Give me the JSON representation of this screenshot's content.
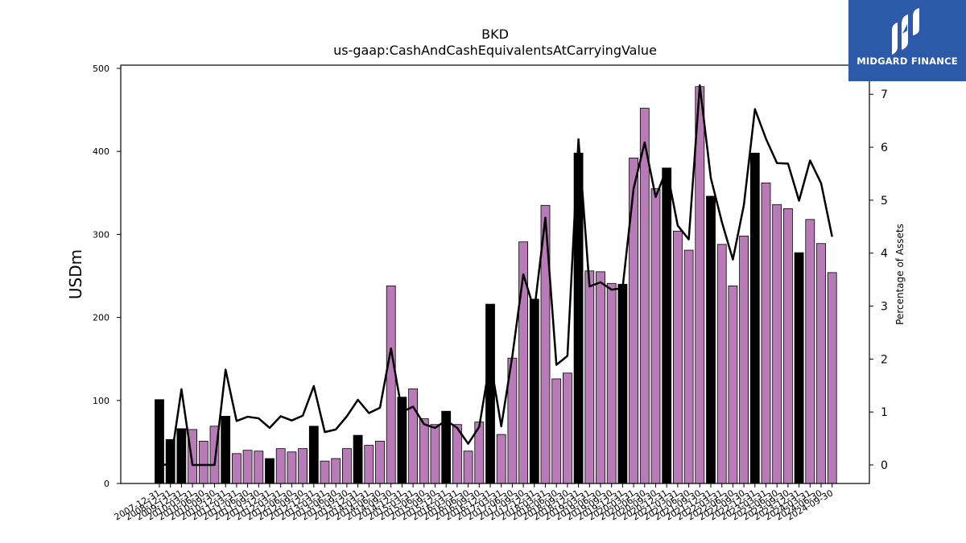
{
  "header": {
    "title": "BKD",
    "subtitle": "us-gaap:CashAndCashEquivalentsAtCarryingValue"
  },
  "logo": {
    "brand": "MIDGARD FINANCE",
    "icon": "midgard-logo-icon"
  },
  "colors": {
    "annual_bar": "#000000",
    "quarter_bar": "#b87bb8",
    "line": "#000000",
    "logo_bg": "#2c5aa8"
  },
  "chart_data": {
    "type": "bar",
    "title": "BKD",
    "subtitle": "us-gaap:CashAndCashEquivalentsAtCarryingValue",
    "ylabel": "USDm",
    "y2label": "Percentage of Assets",
    "ylim": [
      0,
      500
    ],
    "y2lim": [
      -0.35,
      7.55
    ],
    "yticks": [
      0,
      100,
      200,
      300,
      400,
      500
    ],
    "y2ticks": [
      0,
      1,
      2,
      3,
      4,
      5,
      6,
      7
    ],
    "grid": false,
    "categories": [
      "2007-12-31",
      "2008-12-31",
      "2009-12-31",
      "2010-03-31",
      "2010-06-30",
      "2010-09-30",
      "2010-12-31",
      "2011-03-31",
      "2011-06-30",
      "2011-09-30",
      "2011-12-31",
      "2012-03-31",
      "2012-06-30",
      "2012-09-30",
      "2012-12-31",
      "2013-03-31",
      "2013-06-30",
      "2013-09-30",
      "2013-12-31",
      "2014-03-31",
      "2014-06-30",
      "2014-09-30",
      "2014-12-31",
      "2015-03-31",
      "2015-06-30",
      "2015-09-30",
      "2015-12-31",
      "2016-03-31",
      "2016-06-30",
      "2016-09-30",
      "2016-12-31",
      "2017-03-31",
      "2017-06-30",
      "2017-09-30",
      "2017-12-31",
      "2018-03-31",
      "2018-06-30",
      "2018-09-30",
      "2018-12-31",
      "2019-03-31",
      "2019-06-30",
      "2019-09-30",
      "2019-12-31",
      "2020-03-31",
      "2020-06-30",
      "2020-09-30",
      "2020-12-31",
      "2021-03-31",
      "2021-06-30",
      "2021-09-30",
      "2021-12-31",
      "2022-03-31",
      "2022-06-30",
      "2022-09-30",
      "2022-12-31",
      "2023-03-31",
      "2023-06-30",
      "2023-09-30",
      "2023-12-31",
      "2024-03-31",
      "2024-06-30",
      "2024-09-30"
    ],
    "series": [
      {
        "kind": "bar",
        "annual_flags": [
          1,
          1,
          1,
          0,
          0,
          0,
          1,
          0,
          0,
          0,
          1,
          0,
          0,
          0,
          1,
          0,
          0,
          0,
          1,
          0,
          0,
          0,
          1,
          0,
          0,
          0,
          1,
          0,
          0,
          0,
          1,
          0,
          0,
          0,
          1,
          0,
          0,
          0,
          1,
          0,
          0,
          0,
          1,
          0,
          0,
          0,
          1,
          0,
          0,
          0,
          1,
          0,
          0,
          0,
          1,
          0,
          0,
          0,
          1,
          0,
          0,
          0
        ],
        "values": [
          101,
          53,
          66,
          65,
          51,
          69,
          81,
          36,
          40,
          39,
          30,
          42,
          38,
          42,
          69,
          27,
          30,
          42,
          58,
          46,
          51,
          238,
          104,
          114,
          78,
          71,
          87,
          71,
          39,
          74,
          216,
          59,
          151,
          291,
          222,
          335,
          126,
          133,
          398,
          256,
          255,
          241,
          240,
          392,
          452,
          355,
          380,
          304,
          281,
          478,
          346,
          288,
          238,
          298,
          398,
          362,
          336,
          331,
          278,
          318,
          289,
          254
        ]
      },
      {
        "kind": "line",
        "axis": "right",
        "values": [
          0,
          0.01,
          1.43,
          0,
          0,
          0,
          1.8,
          0.83,
          0.91,
          0.88,
          0.7,
          0.92,
          0.84,
          0.93,
          1.49,
          0.62,
          0.67,
          0.92,
          1.23,
          0.98,
          1.08,
          2.2,
          1.0,
          1.1,
          0.77,
          0.7,
          0.84,
          0.7,
          0.4,
          0.72,
          1.98,
          0.73,
          2.05,
          3.6,
          2.92,
          4.67,
          1.89,
          2.06,
          6.15,
          3.37,
          3.45,
          3.31,
          3.34,
          5.22,
          6.09,
          5.06,
          5.59,
          4.52,
          4.26,
          7.17,
          5.42,
          4.59,
          3.88,
          4.91,
          6.72,
          6.16,
          5.7,
          5.69,
          4.99,
          5.75,
          5.32,
          4.31
        ]
      }
    ]
  }
}
